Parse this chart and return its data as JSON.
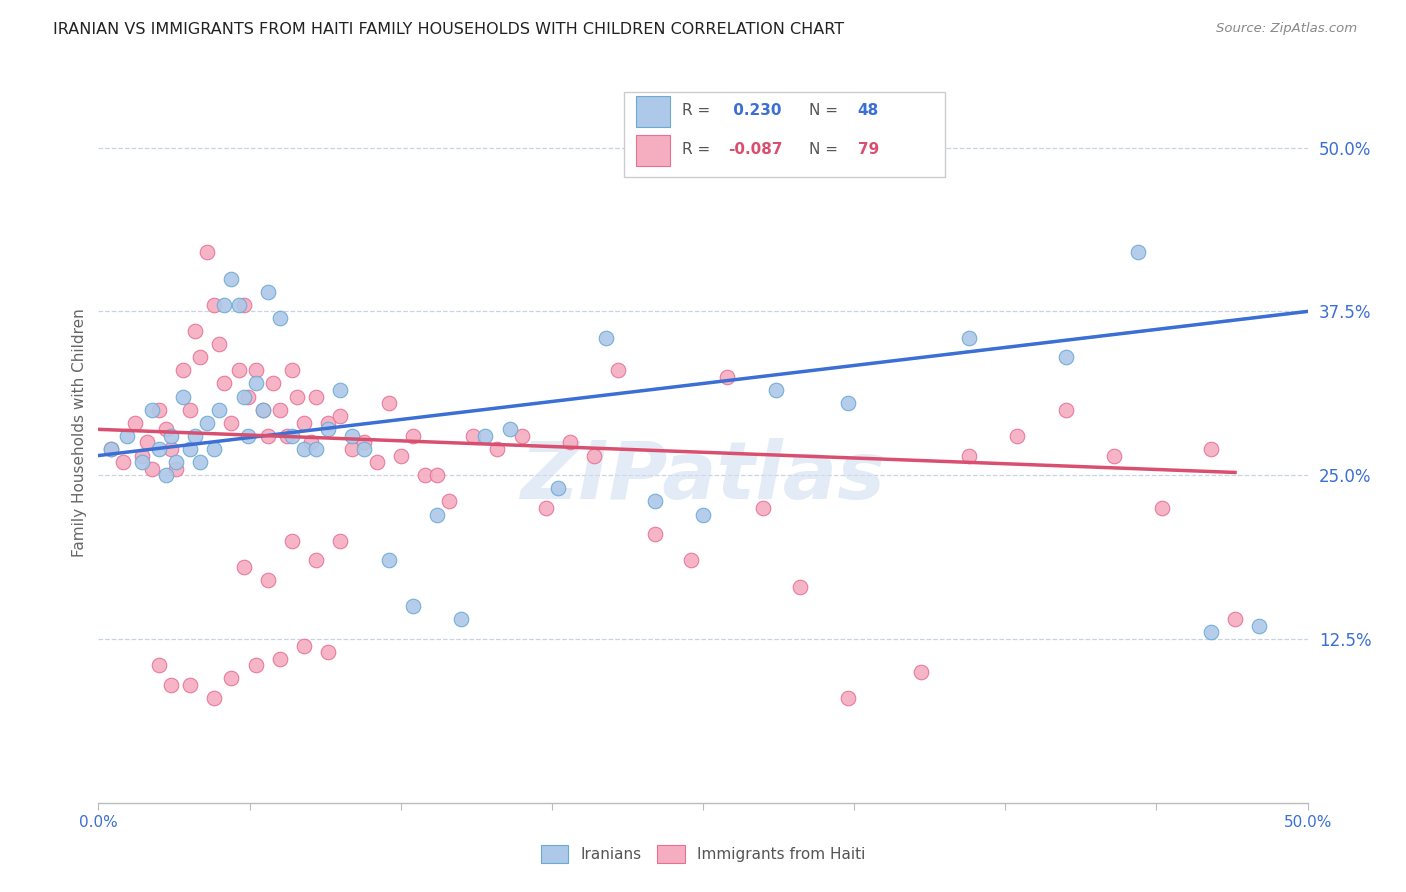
{
  "title": "IRANIAN VS IMMIGRANTS FROM HAITI FAMILY HOUSEHOLDS WITH CHILDREN CORRELATION CHART",
  "source": "Source: ZipAtlas.com",
  "ylabel": "Family Households with Children",
  "ytick_labels": [
    "12.5%",
    "25.0%",
    "37.5%",
    "50.0%"
  ],
  "ytick_values": [
    0.125,
    0.25,
    0.375,
    0.5
  ],
  "xmin": 0.0,
  "xmax": 0.5,
  "ymin": 0.0,
  "ymax": 0.565,
  "legend_label1": "Iranians",
  "legend_label2": "Immigrants from Haiti",
  "R1": 0.23,
  "N1": 48,
  "R2": -0.087,
  "N2": 79,
  "color_blue": "#adc8e8",
  "color_pink": "#f5adc0",
  "color_blue_dark": "#6aaad4",
  "color_pink_dark": "#e87095",
  "trend_blue": "#3b6fd4",
  "trend_pink": "#d94f70",
  "trend_blue_dash": "#b0c8e8",
  "watermark_color": "#d0dff0",
  "background_color": "#ffffff",
  "grid_color": "#c8d4e4",
  "iranians_x": [
    0.005,
    0.012,
    0.018,
    0.022,
    0.025,
    0.028,
    0.03,
    0.032,
    0.035,
    0.038,
    0.04,
    0.042,
    0.045,
    0.048,
    0.05,
    0.052,
    0.055,
    0.058,
    0.06,
    0.062,
    0.065,
    0.068,
    0.07,
    0.075,
    0.08,
    0.085,
    0.09,
    0.095,
    0.1,
    0.105,
    0.11,
    0.12,
    0.13,
    0.14,
    0.15,
    0.16,
    0.17,
    0.19,
    0.21,
    0.23,
    0.25,
    0.28,
    0.31,
    0.36,
    0.4,
    0.43,
    0.46,
    0.48
  ],
  "iranians_y": [
    0.27,
    0.28,
    0.26,
    0.3,
    0.27,
    0.25,
    0.28,
    0.26,
    0.31,
    0.27,
    0.28,
    0.26,
    0.29,
    0.27,
    0.3,
    0.38,
    0.4,
    0.38,
    0.31,
    0.28,
    0.32,
    0.3,
    0.39,
    0.37,
    0.28,
    0.27,
    0.27,
    0.285,
    0.315,
    0.28,
    0.27,
    0.185,
    0.15,
    0.22,
    0.14,
    0.28,
    0.285,
    0.24,
    0.355,
    0.23,
    0.22,
    0.315,
    0.305,
    0.355,
    0.34,
    0.42,
    0.13,
    0.135
  ],
  "haiti_x": [
    0.005,
    0.01,
    0.015,
    0.018,
    0.02,
    0.022,
    0.025,
    0.028,
    0.03,
    0.032,
    0.035,
    0.038,
    0.04,
    0.042,
    0.045,
    0.048,
    0.05,
    0.052,
    0.055,
    0.058,
    0.06,
    0.062,
    0.065,
    0.068,
    0.07,
    0.072,
    0.075,
    0.078,
    0.08,
    0.082,
    0.085,
    0.088,
    0.09,
    0.095,
    0.1,
    0.105,
    0.11,
    0.115,
    0.12,
    0.125,
    0.13,
    0.135,
    0.14,
    0.145,
    0.155,
    0.165,
    0.175,
    0.185,
    0.195,
    0.205,
    0.215,
    0.23,
    0.245,
    0.26,
    0.275,
    0.29,
    0.31,
    0.34,
    0.36,
    0.38,
    0.4,
    0.42,
    0.44,
    0.46,
    0.47,
    0.048,
    0.025,
    0.03,
    0.06,
    0.07,
    0.08,
    0.09,
    0.1,
    0.038,
    0.055,
    0.065,
    0.075,
    0.085,
    0.095
  ],
  "haiti_y": [
    0.27,
    0.26,
    0.29,
    0.265,
    0.275,
    0.255,
    0.3,
    0.285,
    0.27,
    0.255,
    0.33,
    0.3,
    0.36,
    0.34,
    0.42,
    0.38,
    0.35,
    0.32,
    0.29,
    0.33,
    0.38,
    0.31,
    0.33,
    0.3,
    0.28,
    0.32,
    0.3,
    0.28,
    0.33,
    0.31,
    0.29,
    0.275,
    0.31,
    0.29,
    0.295,
    0.27,
    0.275,
    0.26,
    0.305,
    0.265,
    0.28,
    0.25,
    0.25,
    0.23,
    0.28,
    0.27,
    0.28,
    0.225,
    0.275,
    0.265,
    0.33,
    0.205,
    0.185,
    0.325,
    0.225,
    0.165,
    0.08,
    0.1,
    0.265,
    0.28,
    0.3,
    0.265,
    0.225,
    0.27,
    0.14,
    0.08,
    0.105,
    0.09,
    0.18,
    0.17,
    0.2,
    0.185,
    0.2,
    0.09,
    0.095,
    0.105,
    0.11,
    0.12,
    0.115
  ]
}
